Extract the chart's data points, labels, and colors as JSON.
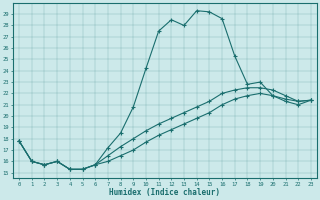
{
  "title": "",
  "xlabel": "Humidex (Indice chaleur)",
  "xlim": [
    -0.5,
    23.5
  ],
  "ylim": [
    14.5,
    30.0
  ],
  "yticks": [
    15,
    16,
    17,
    18,
    19,
    20,
    21,
    22,
    23,
    24,
    25,
    26,
    27,
    28,
    29
  ],
  "xticks": [
    0,
    1,
    2,
    3,
    4,
    5,
    6,
    7,
    8,
    9,
    10,
    11,
    12,
    13,
    14,
    15,
    16,
    17,
    18,
    19,
    20,
    21,
    22,
    23
  ],
  "bg_color": "#cce9ea",
  "line_color": "#1a6e6e",
  "line1_x": [
    0,
    1,
    2,
    3,
    4,
    5,
    6,
    7,
    8,
    9,
    10,
    11,
    12,
    13,
    14,
    15,
    16,
    17,
    18,
    19,
    20,
    21,
    22,
    23
  ],
  "line1_y": [
    17.8,
    16.0,
    15.7,
    16.0,
    15.3,
    15.3,
    15.7,
    17.2,
    18.5,
    20.8,
    24.2,
    27.5,
    28.5,
    28.0,
    29.3,
    29.2,
    28.6,
    25.3,
    22.8,
    23.0,
    21.8,
    21.5,
    21.3,
    21.4
  ],
  "line2_x": [
    0,
    1,
    2,
    3,
    4,
    5,
    6,
    7,
    8,
    9,
    10,
    11,
    12,
    13,
    14,
    15,
    16,
    17,
    18,
    19,
    20,
    21,
    22,
    23
  ],
  "line2_y": [
    17.8,
    16.0,
    15.7,
    16.0,
    15.3,
    15.3,
    15.7,
    16.5,
    17.3,
    18.0,
    18.7,
    19.3,
    19.8,
    20.3,
    20.8,
    21.3,
    22.0,
    22.3,
    22.5,
    22.5,
    22.3,
    21.8,
    21.3,
    21.4
  ],
  "line3_x": [
    0,
    1,
    2,
    3,
    4,
    5,
    6,
    7,
    8,
    9,
    10,
    11,
    12,
    13,
    14,
    15,
    16,
    17,
    18,
    19,
    20,
    21,
    22,
    23
  ],
  "line3_y": [
    17.8,
    16.0,
    15.7,
    16.0,
    15.3,
    15.3,
    15.7,
    16.0,
    16.5,
    17.0,
    17.7,
    18.3,
    18.8,
    19.3,
    19.8,
    20.3,
    21.0,
    21.5,
    21.8,
    22.0,
    21.8,
    21.3,
    21.0,
    21.4
  ]
}
